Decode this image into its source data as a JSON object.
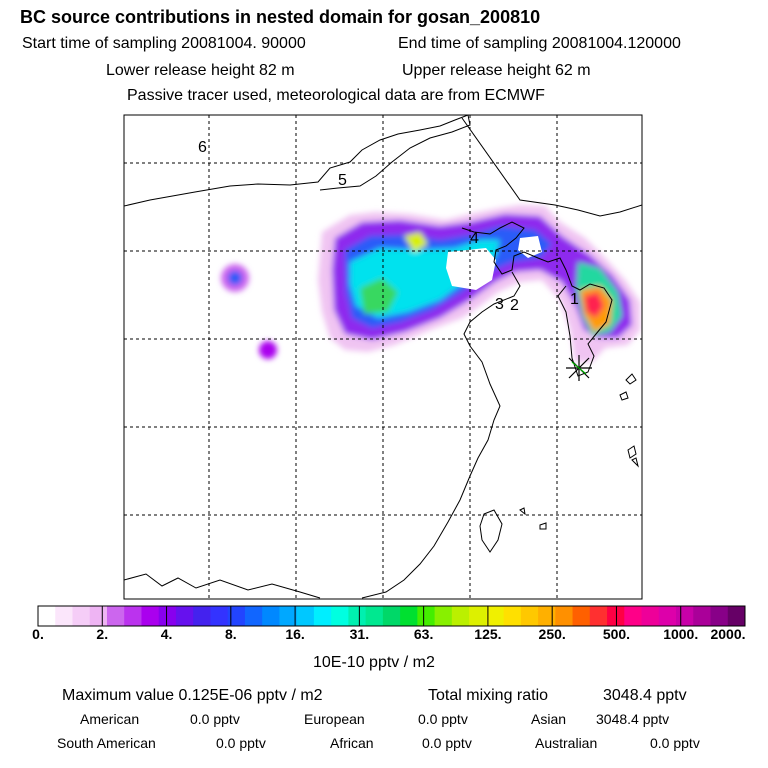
{
  "header": {
    "title": "BC  source contributions in nested domain for gosan_200810",
    "start": "Start time of sampling 20081004. 90000",
    "end": "End time of sampling 20081004.120000",
    "lower": "Lower release height   82 m",
    "upper": "Upper release height   62 m",
    "tracer": "Passive tracer used, meteorological data are from ECMWF"
  },
  "map": {
    "grid_labels": [
      "6",
      "5",
      "4",
      "3",
      "2",
      "1"
    ],
    "receptor_marker": "star-icon"
  },
  "colorbar": {
    "ticks": [
      "0.",
      "2.",
      "4.",
      "8.",
      "16.",
      "31.",
      "63.",
      "125.",
      "250.",
      "500.",
      "1000.",
      "2000."
    ],
    "colors": [
      "#ffffff",
      "#fbe6fb",
      "#f5cdf7",
      "#eeb4f3",
      "#cc66ee",
      "#bb33ee",
      "#aa00ee",
      "#8800ee",
      "#6611ee",
      "#4422ee",
      "#3333ff",
      "#2244ff",
      "#1166ff",
      "#0088ff",
      "#00a8ff",
      "#00c8ff",
      "#00eeff",
      "#00ffe0",
      "#00f0b0",
      "#00e890",
      "#00d868",
      "#00e030",
      "#44ee00",
      "#88f000",
      "#bbf000",
      "#ddf000",
      "#f0f000",
      "#ffe000",
      "#ffc800",
      "#ffb000",
      "#ff9000",
      "#ff6000",
      "#ff3030",
      "#ff0044",
      "#ff0088",
      "#ee0099",
      "#dd00aa",
      "#c800a8",
      "#aa0099",
      "#880088",
      "#660066"
    ],
    "unit": "10E-10 pptv / m2"
  },
  "summary": {
    "max_label": "Maximum value  0.125E-06 pptv / m2",
    "total_label": "Total mixing ratio",
    "total_value": "3048.4 pptv",
    "american_label": "American",
    "american_value": "0.0 pptv",
    "european_label": "European",
    "european_value": "0.0 pptv",
    "asian_label": "Asian",
    "asian_value": "3048.4 pptv",
    "south_american_label": "South American",
    "south_american_value": "0.0 pptv",
    "african_label": "African",
    "african_value": "0.0 pptv",
    "australian_label": "Australian",
    "australian_value": "0.0 pptv"
  }
}
